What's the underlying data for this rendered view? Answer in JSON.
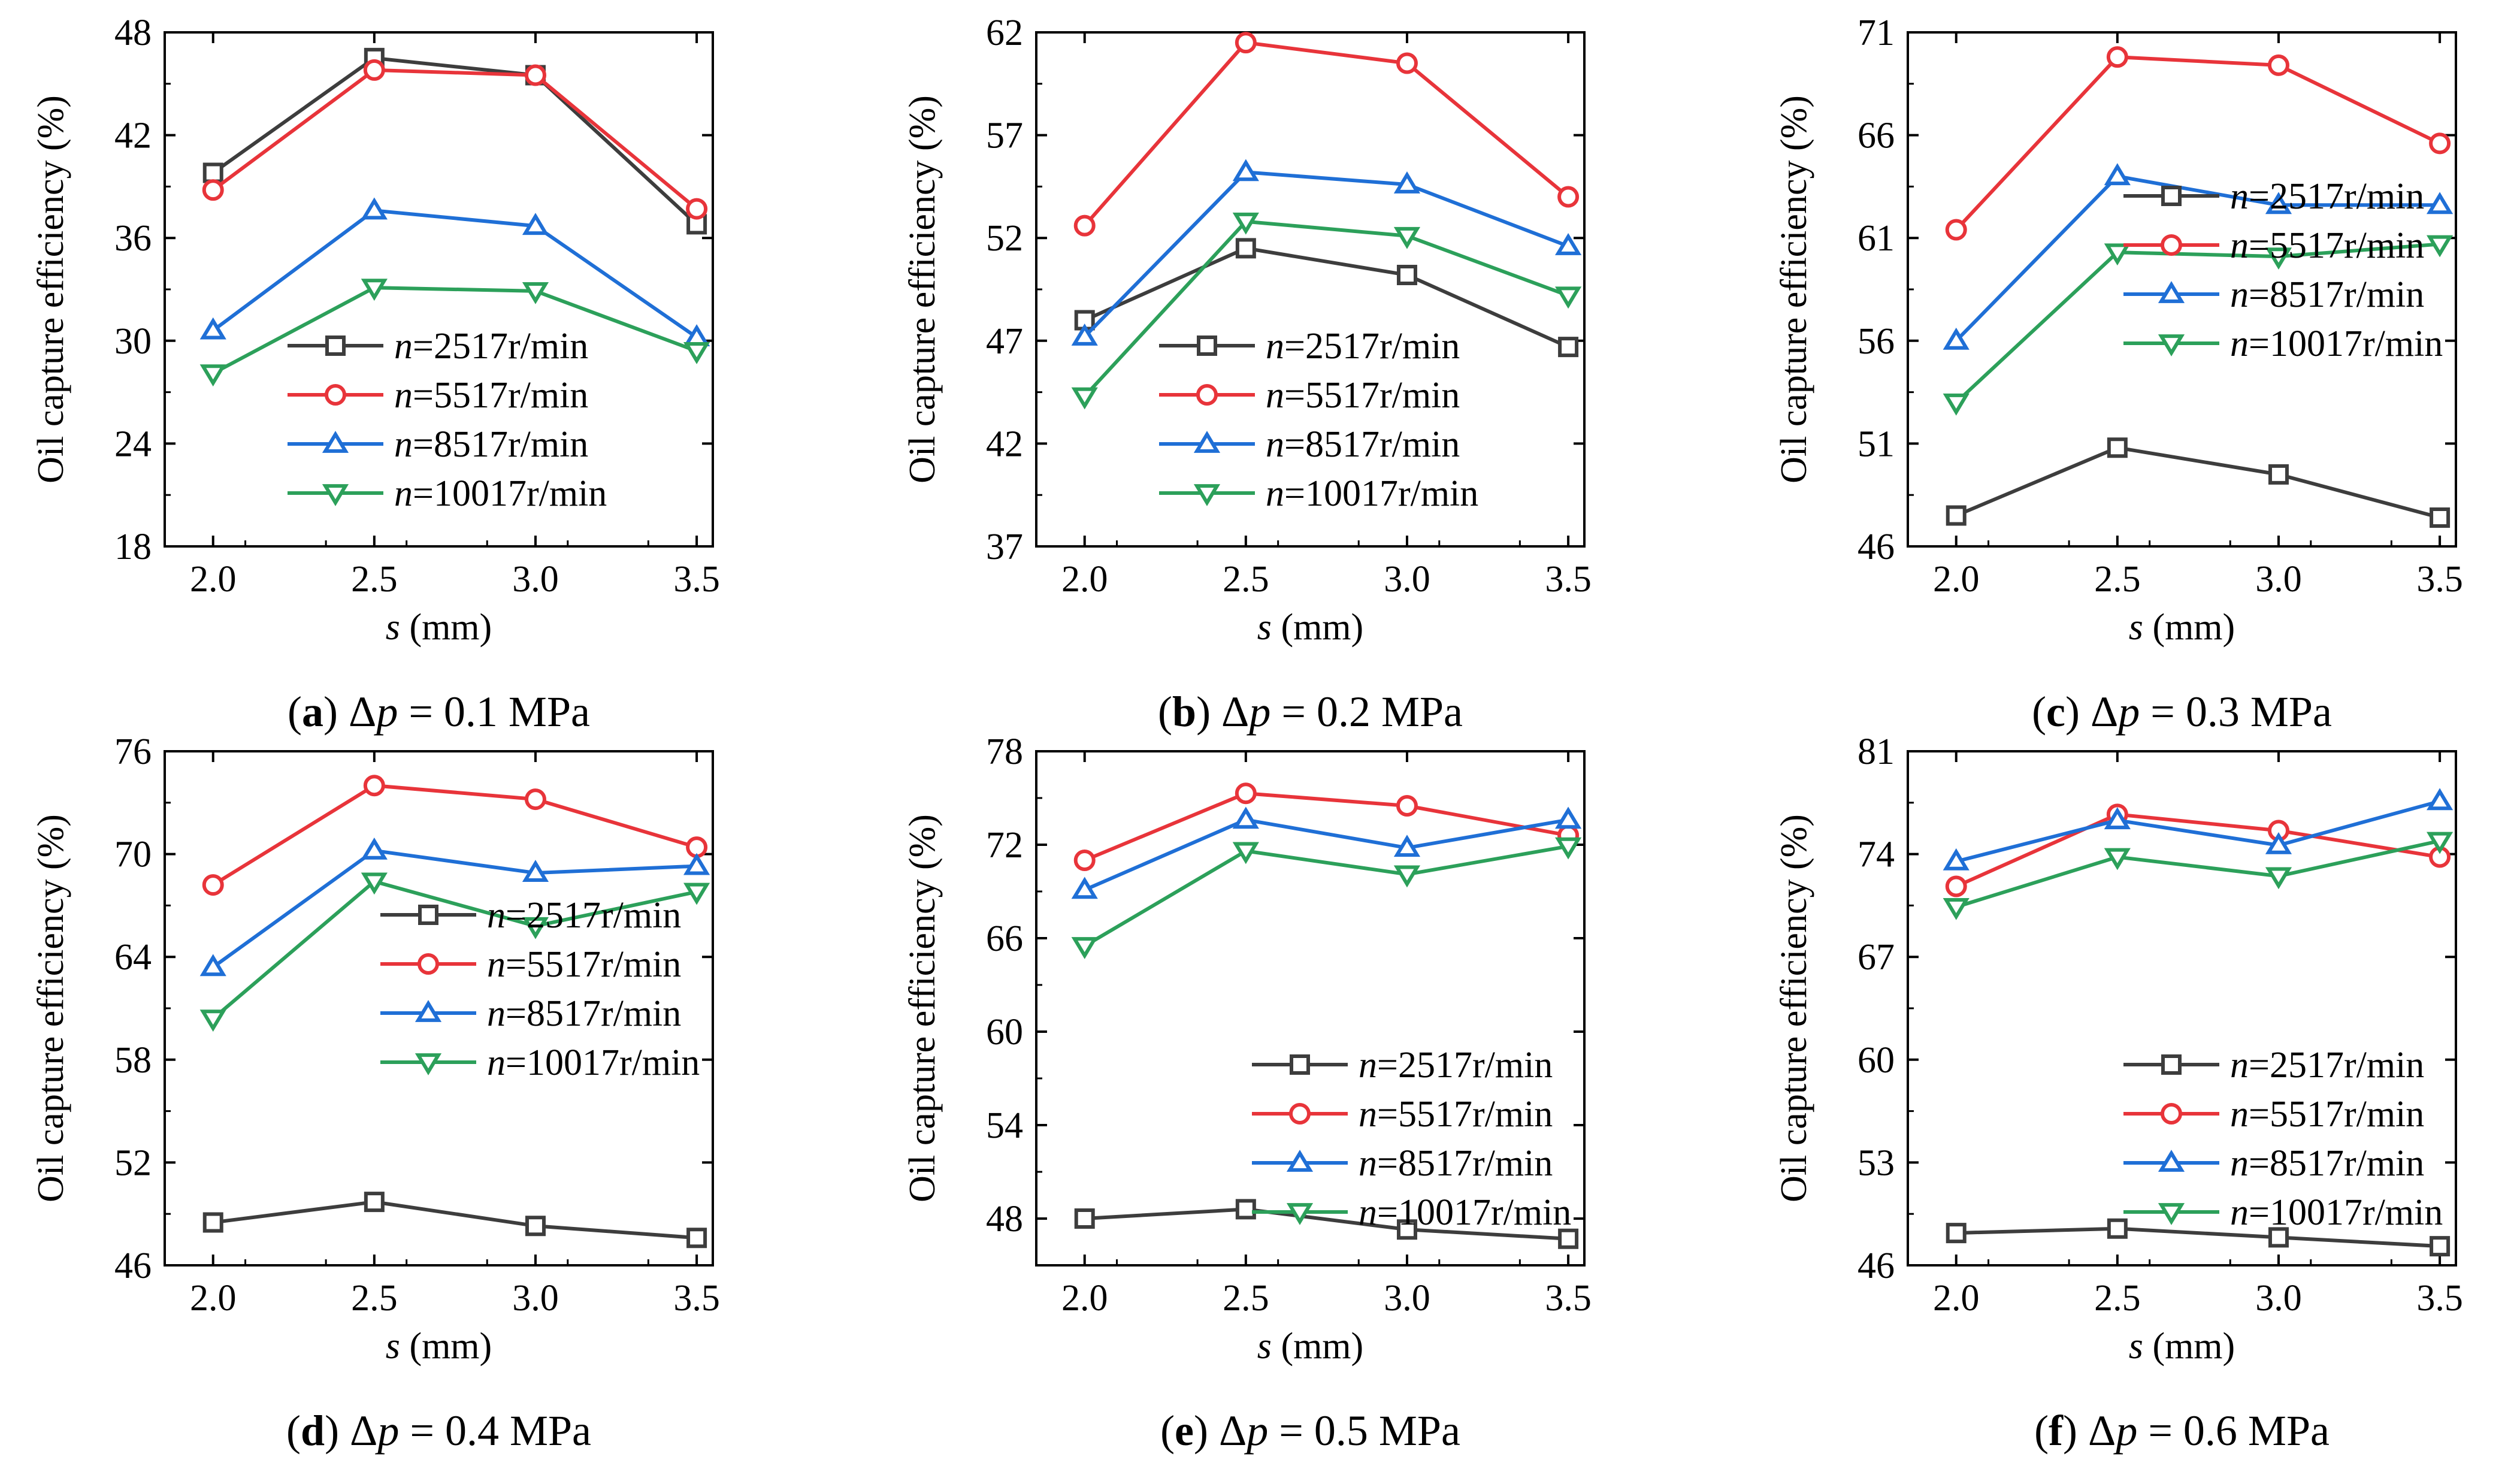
{
  "figure": {
    "colors": {
      "n2517": "#3d3d3d",
      "n5517": "#e8343a",
      "n8517": "#1f6fd6",
      "n10017": "#2ca05a",
      "axis": "#000000"
    },
    "legend": [
      {
        "key": "n2517",
        "prefix": "n",
        "text": "=2517r/min",
        "marker": "square"
      },
      {
        "key": "n5517",
        "prefix": "n",
        "text": "=5517r/min",
        "marker": "circle"
      },
      {
        "key": "n8517",
        "prefix": "n",
        "text": "=8517r/min",
        "marker": "triangle-up"
      },
      {
        "key": "n10017",
        "prefix": "n",
        "text": "=10017r/min",
        "marker": "triangle-down"
      }
    ]
  },
  "chart_data": [
    {
      "type": "line",
      "panel": "a",
      "caption_letter": "a",
      "caption_rest": " = 0.1 MPa",
      "xlabel_var": "s",
      "xlabel_unit": " (mm)",
      "ylabel": "Oil capture efficiency (%)",
      "x": [
        2.0,
        2.5,
        3.0,
        3.5
      ],
      "xlim": [
        1.85,
        3.55
      ],
      "ylim": [
        18,
        48
      ],
      "xticks": [
        "2.0",
        "2.5",
        "3.0",
        "3.5"
      ],
      "yticks": [
        "18",
        "24",
        "30",
        "36",
        "42",
        "48"
      ],
      "legend_position": "bottom-center",
      "series": [
        {
          "key": "n2517",
          "name": "n=2517r/min",
          "values": [
            39.8,
            46.5,
            45.5,
            36.8
          ]
        },
        {
          "key": "n5517",
          "name": "n=5517r/min",
          "values": [
            38.8,
            45.8,
            45.5,
            37.7
          ]
        },
        {
          "key": "n8517",
          "name": "n=8517r/min",
          "values": [
            30.6,
            37.6,
            36.7,
            30.2
          ]
        },
        {
          "key": "n10017",
          "name": "n=10017r/min",
          "values": [
            28.1,
            33.1,
            32.9,
            29.4
          ]
        }
      ]
    },
    {
      "type": "line",
      "panel": "b",
      "caption_letter": "b",
      "caption_rest": " = 0.2 MPa",
      "xlabel_var": "s",
      "xlabel_unit": " (mm)",
      "ylabel": "Oil capture efficiency (%)",
      "x": [
        2.0,
        2.5,
        3.0,
        3.5
      ],
      "xlim": [
        1.85,
        3.55
      ],
      "ylim": [
        37,
        62
      ],
      "xticks": [
        "2.0",
        "2.5",
        "3.0",
        "3.5"
      ],
      "yticks": [
        "37",
        "42",
        "47",
        "52",
        "57",
        "62"
      ],
      "legend_position": "bottom-center",
      "series": [
        {
          "key": "n2517",
          "name": "n=2517r/min",
          "values": [
            48.0,
            51.5,
            50.2,
            46.7
          ]
        },
        {
          "key": "n5517",
          "name": "n=5517r/min",
          "values": [
            52.6,
            61.5,
            60.5,
            54.0
          ]
        },
        {
          "key": "n8517",
          "name": "n=8517r/min",
          "values": [
            47.2,
            55.2,
            54.6,
            51.6
          ]
        },
        {
          "key": "n10017",
          "name": "n=10017r/min",
          "values": [
            44.3,
            52.8,
            52.1,
            49.2
          ]
        }
      ]
    },
    {
      "type": "line",
      "panel": "c",
      "caption_letter": "c",
      "caption_rest": " = 0.3 MPa",
      "xlabel_var": "s",
      "xlabel_unit": " (mm)",
      "ylabel": "Oil capture efficiency (%)",
      "x": [
        2.0,
        2.5,
        3.0,
        3.5
      ],
      "xlim": [
        1.85,
        3.55
      ],
      "ylim": [
        46,
        71
      ],
      "xticks": [
        "2.0",
        "2.5",
        "3.0",
        "3.5"
      ],
      "yticks": [
        "46",
        "51",
        "56",
        "61",
        "66",
        "71"
      ],
      "legend_position": "center-right",
      "series": [
        {
          "key": "n2517",
          "name": "n=2517r/min",
          "values": [
            47.5,
            50.8,
            49.5,
            47.4
          ]
        },
        {
          "key": "n5517",
          "name": "n=5517r/min",
          "values": [
            61.4,
            69.8,
            69.4,
            65.6
          ]
        },
        {
          "key": "n8517",
          "name": "n=8517r/min",
          "values": [
            56.0,
            64.0,
            62.6,
            62.6
          ]
        },
        {
          "key": "n10017",
          "name": "n=10017r/min",
          "values": [
            53.0,
            60.3,
            60.1,
            60.7
          ]
        }
      ]
    },
    {
      "type": "line",
      "panel": "d",
      "caption_letter": "d",
      "caption_rest": " = 0.4 MPa",
      "xlabel_var": "s",
      "xlabel_unit": " (mm)",
      "ylabel": "Oil capture efficiency (%)",
      "x": [
        2.0,
        2.5,
        3.0,
        3.5
      ],
      "xlim": [
        1.85,
        3.55
      ],
      "ylim": [
        46,
        76
      ],
      "xticks": [
        "2.0",
        "2.5",
        "3.0",
        "3.5"
      ],
      "yticks": [
        "46",
        "52",
        "58",
        "64",
        "70",
        "76"
      ],
      "legend_position": "center-right",
      "series": [
        {
          "key": "n2517",
          "name": "n=2517r/min",
          "values": [
            48.5,
            49.7,
            48.3,
            47.6
          ]
        },
        {
          "key": "n5517",
          "name": "n=5517r/min",
          "values": [
            68.2,
            74.0,
            73.2,
            70.4
          ]
        },
        {
          "key": "n8517",
          "name": "n=8517r/min",
          "values": [
            63.4,
            70.2,
            68.9,
            69.3
          ]
        },
        {
          "key": "n10017",
          "name": "n=10017r/min",
          "values": [
            60.4,
            68.4,
            65.8,
            67.8
          ]
        }
      ]
    },
    {
      "type": "line",
      "panel": "e",
      "caption_letter": "e",
      "caption_rest": " = 0.5 MPa",
      "xlabel_var": "s",
      "xlabel_unit": " (mm)",
      "ylabel": "Oil capture efficiency (%)",
      "x": [
        2.0,
        2.5,
        3.0,
        3.5
      ],
      "xlim": [
        1.85,
        3.55
      ],
      "ylim": [
        45,
        78
      ],
      "xticks": [
        "2.0",
        "2.5",
        "3.0",
        "3.5"
      ],
      "yticks": [
        "48",
        "54",
        "60",
        "66",
        "72",
        "78"
      ],
      "legend_position": "bottom-right",
      "series": [
        {
          "key": "n2517",
          "name": "n=2517r/min",
          "values": [
            48.0,
            48.6,
            47.3,
            46.7
          ]
        },
        {
          "key": "n5517",
          "name": "n=5517r/min",
          "values": [
            71.0,
            75.3,
            74.5,
            72.6
          ]
        },
        {
          "key": "n8517",
          "name": "n=8517r/min",
          "values": [
            69.1,
            73.6,
            71.8,
            73.6
          ]
        },
        {
          "key": "n10017",
          "name": "n=10017r/min",
          "values": [
            65.5,
            71.6,
            70.1,
            71.9
          ]
        }
      ]
    },
    {
      "type": "line",
      "panel": "f",
      "caption_letter": "f",
      "caption_rest": " = 0.6 MPa",
      "xlabel_var": "s",
      "xlabel_unit": " (mm)",
      "ylabel": "Oil capture efficiency (%)",
      "x": [
        2.0,
        2.5,
        3.0,
        3.5
      ],
      "xlim": [
        1.85,
        3.55
      ],
      "ylim": [
        46,
        81
      ],
      "xticks": [
        "2.0",
        "2.5",
        "3.0",
        "3.5"
      ],
      "yticks": [
        "46",
        "53",
        "60",
        "67",
        "74",
        "81"
      ],
      "legend_position": "bottom-right",
      "series": [
        {
          "key": "n2517",
          "name": "n=2517r/min",
          "values": [
            48.2,
            48.5,
            47.9,
            47.3
          ]
        },
        {
          "key": "n5517",
          "name": "n=5517r/min",
          "values": [
            71.8,
            76.7,
            75.6,
            73.8
          ]
        },
        {
          "key": "n8517",
          "name": "n=8517r/min",
          "values": [
            73.5,
            76.3,
            74.6,
            77.6
          ]
        },
        {
          "key": "n10017",
          "name": "n=10017r/min",
          "values": [
            70.4,
            73.8,
            72.5,
            74.9
          ]
        }
      ]
    }
  ]
}
